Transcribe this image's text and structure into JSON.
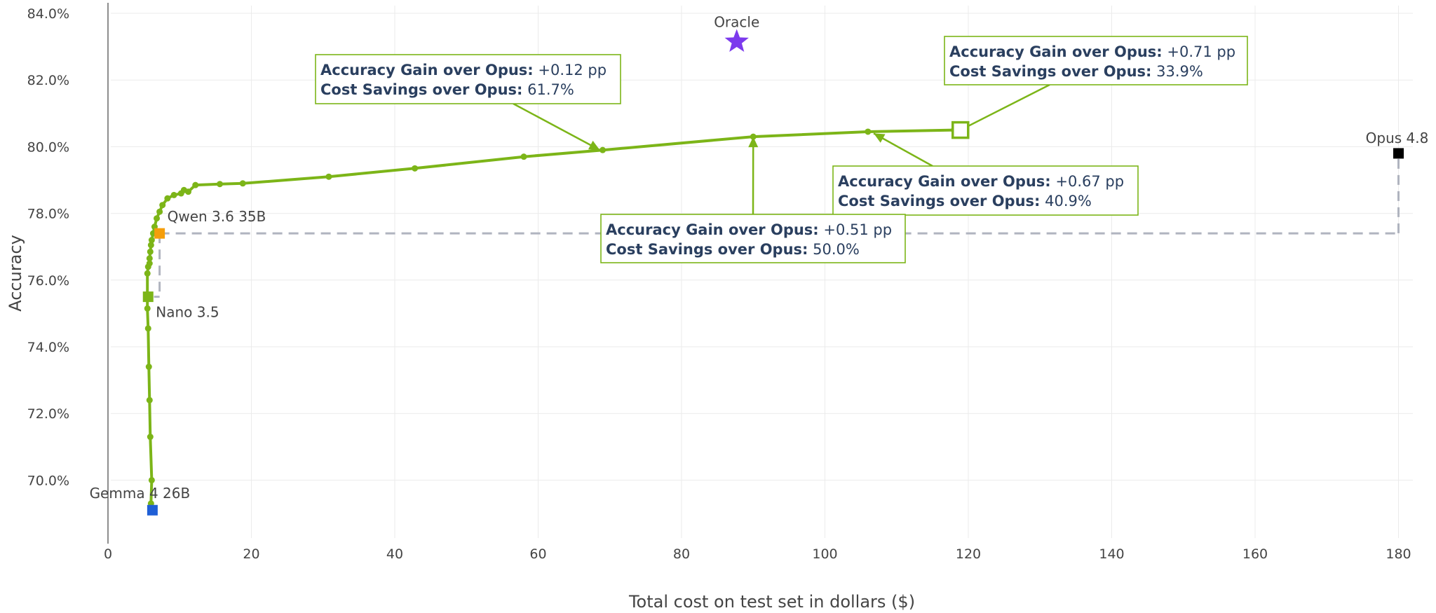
{
  "chart_data": {
    "type": "line",
    "title": "",
    "xlabel": "Total cost on test set in dollars ($)",
    "ylabel": "Accuracy",
    "xlim": [
      -3,
      182
    ],
    "ylim": [
      68.2,
      84.3
    ],
    "x_ticks": [
      0,
      20,
      40,
      60,
      80,
      100,
      120,
      140,
      160,
      180
    ],
    "y_ticks": [
      70,
      72,
      74,
      76,
      78,
      80,
      82,
      84
    ],
    "y_tick_format": "percent_1dp",
    "grid": true,
    "legend": "none",
    "colors": {
      "frontier": "#7cb518",
      "oracle": "#7c3aed",
      "opus": "#000000",
      "qwen": "#f59e0b",
      "gemma": "#1f5fd6",
      "dashed": "#b0b4bf",
      "annotation_text": "#2a3f5f"
    },
    "series": [
      {
        "values": [
          [
            6.0,
            69.3
          ],
          [
            6.1,
            70.0
          ],
          [
            5.9,
            71.3
          ],
          [
            5.8,
            72.4
          ],
          [
            5.7,
            73.4
          ],
          [
            5.6,
            74.55
          ],
          [
            5.5,
            75.15
          ],
          [
            5.5,
            75.55
          ],
          [
            5.5,
            76.2
          ],
          [
            5.6,
            76.4
          ],
          [
            5.8,
            76.5
          ],
          [
            5.8,
            76.65
          ],
          [
            5.9,
            76.85
          ],
          [
            6.0,
            77.05
          ],
          [
            6.1,
            77.2
          ],
          [
            6.3,
            77.4
          ],
          [
            6.5,
            77.6
          ],
          [
            6.8,
            77.85
          ],
          [
            7.2,
            78.05
          ],
          [
            7.6,
            78.25
          ],
          [
            8.3,
            78.45
          ],
          [
            9.2,
            78.55
          ],
          [
            10.2,
            78.6
          ],
          [
            10.6,
            78.7
          ],
          [
            11.2,
            78.65
          ],
          [
            12.2,
            78.85
          ],
          [
            15.6,
            78.88
          ],
          [
            18.8,
            78.9
          ],
          [
            30.8,
            79.1
          ],
          [
            42.8,
            79.35
          ],
          [
            58.0,
            79.7
          ],
          [
            69.0,
            79.9
          ],
          [
            90.0,
            80.3
          ],
          [
            106.0,
            80.45
          ],
          [
            118.0,
            80.5
          ]
        ]
      }
    ],
    "points": [
      {
        "label": "Oracle",
        "x": 87.7,
        "y": 83.15,
        "marker": "star",
        "color": "#7c3aed"
      },
      {
        "label": "Opus 4.8",
        "x": 180.0,
        "y": 79.8,
        "marker": "square",
        "color": "#000000"
      },
      {
        "label": "Qwen 3.6 35B",
        "x": 7.2,
        "y": 77.4,
        "marker": "square",
        "color": "#f59e0b"
      },
      {
        "label": "Nano 3.5",
        "x": 5.6,
        "y": 75.5,
        "marker": "square",
        "color": "#7cb518"
      },
      {
        "label": "Gemma 4 26B",
        "x": 6.2,
        "y": 69.1,
        "marker": "square",
        "color": "#1f5fd6"
      }
    ],
    "annotations": [
      {
        "line1_bold": "Accuracy Gain over Opus:",
        "line1_value": "+0.12 pp",
        "line2_bold": "Cost Savings over Opus:",
        "line2_value": "61.7%",
        "target_x": 68.6,
        "target_y": 79.9,
        "arrow": "triangle"
      },
      {
        "line1_bold": "Accuracy Gain over Opus:",
        "line1_value": "+0.71 pp",
        "line2_bold": "Cost Savings over Opus:",
        "line2_value": "33.9%",
        "target_x": 118.9,
        "target_y": 80.5,
        "arrow": "hollow-square"
      },
      {
        "line1_bold": "Accuracy Gain over Opus:",
        "line1_value": "+0.67 pp",
        "line2_bold": "Cost Savings over Opus:",
        "line2_value": "40.9%",
        "target_x": 106.8,
        "target_y": 80.4,
        "arrow": "triangle"
      },
      {
        "line1_bold": "Accuracy Gain over Opus:",
        "line1_value": "+0.51 pp",
        "line2_bold": "Cost Savings over Opus:",
        "line2_value": "50.0%",
        "target_x": 90.0,
        "target_y": 80.3,
        "arrow": "triangle"
      }
    ],
    "reference_lines": {
      "horizontal_y": 77.4,
      "from_x": 7.2,
      "to_x": 180.0,
      "vertical_right_x": 180.0,
      "vertical_right_from_y": 79.8,
      "vertical_left_x": 7.2,
      "vertical_left_to_y": 75.5
    }
  }
}
